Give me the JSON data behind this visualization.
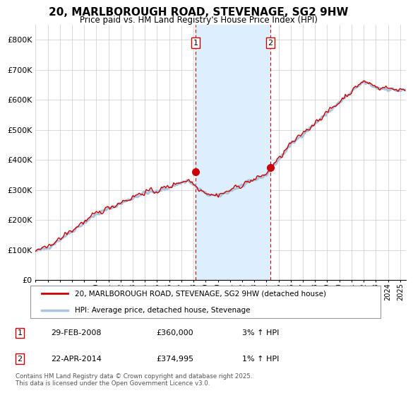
{
  "title": "20, MARLBOROUGH ROAD, STEVENAGE, SG2 9HW",
  "subtitle": "Price paid vs. HM Land Registry's House Price Index (HPI)",
  "ylabel_ticks": [
    "£0",
    "£100K",
    "£200K",
    "£300K",
    "£400K",
    "£500K",
    "£600K",
    "£700K",
    "£800K"
  ],
  "ylim": [
    0,
    850000
  ],
  "ytick_vals": [
    0,
    100000,
    200000,
    300000,
    400000,
    500000,
    600000,
    700000,
    800000
  ],
  "hpi_color": "#aac4df",
  "price_color": "#cc0000",
  "sale1_x": 2008.17,
  "sale1_price": 360000,
  "sale2_x": 2014.31,
  "sale2_price": 374995,
  "shade_color": "#ddeeff",
  "vline_color": "#cc0000",
  "grid_color": "#cccccc",
  "legend_house": "20, MARLBOROUGH ROAD, STEVENAGE, SG2 9HW (detached house)",
  "legend_hpi": "HPI: Average price, detached house, Stevenage",
  "note1_label": "1",
  "note1_date": "29-FEB-2008",
  "note1_price": "£360,000",
  "note1_hpi": "3% ↑ HPI",
  "note2_label": "2",
  "note2_date": "22-APR-2014",
  "note2_price": "£374,995",
  "note2_hpi": "1% ↑ HPI",
  "footer": "Contains HM Land Registry data © Crown copyright and database right 2025.\nThis data is licensed under the Open Government Licence v3.0.",
  "xlim_start": 1995.0,
  "xlim_end": 2025.5,
  "xtick_years": [
    1995,
    1996,
    1997,
    1998,
    1999,
    2000,
    2001,
    2002,
    2003,
    2004,
    2005,
    2006,
    2007,
    2008,
    2009,
    2010,
    2011,
    2012,
    2013,
    2014,
    2015,
    2016,
    2017,
    2018,
    2019,
    2020,
    2021,
    2022,
    2023,
    2024,
    2025
  ]
}
